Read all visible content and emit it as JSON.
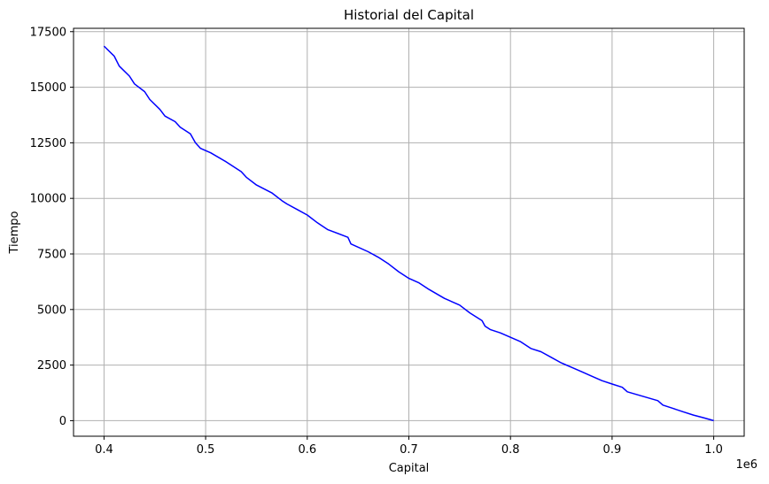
{
  "chart_data": {
    "type": "line",
    "title": "Historial del Capital",
    "xlabel": "Capital",
    "ylabel": "Tiempo",
    "x_offset_label": "1e6",
    "xlim": [
      0.37,
      1.03
    ],
    "ylim": [
      -700,
      17650
    ],
    "xticks": [
      0.4,
      0.5,
      0.6,
      0.7,
      0.8,
      0.9,
      1.0
    ],
    "xtick_labels": [
      "0.4",
      "0.5",
      "0.6",
      "0.7",
      "0.8",
      "0.9",
      "1.0"
    ],
    "yticks": [
      0,
      2500,
      5000,
      7500,
      10000,
      12500,
      15000,
      17500
    ],
    "ytick_labels": [
      "0",
      "2500",
      "5000",
      "7500",
      "10000",
      "12500",
      "15000",
      "17500"
    ],
    "grid": true,
    "line_color": "#0000ff",
    "series": [
      {
        "x": [
          0.4,
          0.41,
          0.415,
          0.425,
          0.43,
          0.44,
          0.445,
          0.455,
          0.46,
          0.47,
          0.475,
          0.485,
          0.49,
          0.495,
          0.505,
          0.52,
          0.535,
          0.54,
          0.55,
          0.565,
          0.575,
          0.58,
          0.59,
          0.6,
          0.61,
          0.62,
          0.64,
          0.643,
          0.66,
          0.67,
          0.68,
          0.69,
          0.7,
          0.71,
          0.72,
          0.735,
          0.75,
          0.76,
          0.772,
          0.775,
          0.78,
          0.79,
          0.8,
          0.81,
          0.82,
          0.83,
          0.84,
          0.85,
          0.86,
          0.87,
          0.88,
          0.89,
          0.9,
          0.91,
          0.915,
          0.93,
          0.945,
          0.95,
          0.96,
          0.97,
          0.98,
          0.99,
          1.0
        ],
        "y": [
          16850,
          16400,
          15950,
          15500,
          15150,
          14800,
          14450,
          14000,
          13700,
          13450,
          13200,
          12900,
          12500,
          12250,
          12050,
          11650,
          11200,
          10950,
          10600,
          10250,
          9900,
          9750,
          9500,
          9250,
          8900,
          8600,
          8250,
          7950,
          7600,
          7350,
          7050,
          6700,
          6400,
          6200,
          5900,
          5500,
          5200,
          4850,
          4500,
          4250,
          4100,
          3950,
          3750,
          3550,
          3250,
          3100,
          2850,
          2600,
          2400,
          2200,
          2000,
          1800,
          1650,
          1500,
          1300,
          1100,
          900,
          700,
          550,
          400,
          250,
          130,
          0
        ]
      }
    ]
  }
}
